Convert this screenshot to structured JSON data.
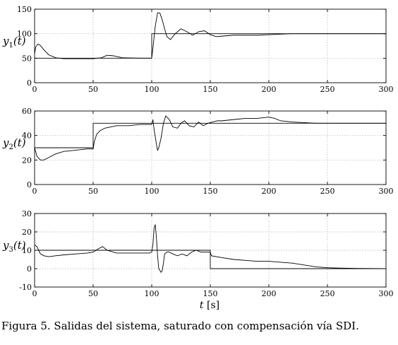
{
  "caption": "Figura 5. Salidas del sistema, saturado con compensación vía SDI.",
  "chart_data": [
    {
      "type": "line",
      "ylabel": "y1(t)",
      "xlim": [
        0,
        300
      ],
      "ylim": [
        0,
        150
      ],
      "xticks": [
        0,
        50,
        100,
        150,
        200,
        250,
        300
      ],
      "yticks": [
        0,
        50,
        100,
        150
      ],
      "grid": true,
      "series": [
        {
          "x": [
            0,
            100,
            100,
            300
          ],
          "y": [
            50,
            50,
            100,
            100
          ]
        },
        {
          "x": [
            0,
            1,
            3,
            5,
            8,
            12,
            18,
            25,
            35,
            50,
            57,
            62,
            67,
            75,
            90,
            100,
            101,
            103,
            105,
            107,
            109,
            111,
            113,
            116,
            120,
            125,
            130,
            135,
            140,
            145,
            150,
            155,
            160,
            170,
            180,
            190,
            200,
            210,
            220,
            230,
            240,
            260,
            280,
            300
          ],
          "y": [
            59,
            73,
            79,
            76,
            67,
            57,
            51,
            49,
            49,
            49,
            51,
            56,
            55,
            51,
            50,
            50,
            70,
            115,
            143,
            142,
            128,
            110,
            94,
            88,
            100,
            110,
            104,
            97,
            104,
            106,
            98,
            94,
            95,
            97,
            97,
            97,
            98,
            99,
            100,
            100,
            100,
            100,
            100,
            100
          ]
        }
      ]
    },
    {
      "type": "line",
      "ylabel": "y2(t)",
      "xlim": [
        0,
        300
      ],
      "ylim": [
        0,
        60
      ],
      "xticks": [
        0,
        50,
        100,
        150,
        200,
        250,
        300
      ],
      "yticks": [
        0,
        20,
        40,
        60
      ],
      "grid": true,
      "series": [
        {
          "x": [
            0,
            50,
            50,
            300
          ],
          "y": [
            30,
            30,
            50,
            50
          ]
        },
        {
          "x": [
            0,
            2,
            5,
            8,
            12,
            18,
            25,
            35,
            45,
            50,
            51,
            53,
            56,
            60,
            65,
            70,
            80,
            90,
            100,
            101,
            102,
            104,
            105,
            106,
            108,
            110,
            112,
            115,
            118,
            122,
            125,
            128,
            132,
            136,
            140,
            144,
            148,
            152,
            156,
            160,
            170,
            180,
            190,
            200,
            205,
            210,
            220,
            240,
            260,
            280,
            300
          ],
          "y": [
            30,
            23,
            20,
            20,
            22,
            25,
            27,
            28,
            29,
            29,
            35,
            41,
            44,
            46,
            47,
            48,
            48,
            49,
            49,
            53,
            45,
            33,
            28,
            30,
            38,
            50,
            56,
            53,
            47,
            46,
            50,
            52,
            48,
            47,
            51,
            48,
            50,
            51,
            52,
            52,
            53,
            54,
            54,
            55,
            54,
            52,
            51,
            50,
            50,
            50,
            50
          ]
        }
      ]
    },
    {
      "type": "line",
      "ylabel": "y3(t)",
      "xlim": [
        0,
        300
      ],
      "ylim": [
        -10,
        30
      ],
      "xticks": [
        0,
        50,
        100,
        150,
        200,
        250,
        300
      ],
      "yticks": [
        -10,
        0,
        10,
        20,
        30
      ],
      "grid": true,
      "series": [
        {
          "x": [
            0,
            150,
            150,
            300
          ],
          "y": [
            10,
            10,
            0,
            0
          ]
        },
        {
          "x": [
            0,
            2,
            5,
            8,
            12,
            18,
            25,
            35,
            45,
            50,
            55,
            58,
            62,
            70,
            80,
            90,
            98,
            100,
            101,
            102,
            103,
            104,
            105,
            106,
            107,
            108,
            109,
            110,
            111,
            113,
            115,
            118,
            122,
            126,
            130,
            134,
            138,
            142,
            146,
            150,
            151,
            160,
            170,
            180,
            190,
            200,
            210,
            220,
            230,
            240,
            250,
            260,
            280,
            300
          ],
          "y": [
            13,
            12,
            8,
            7,
            6.5,
            7,
            7.5,
            8,
            8.5,
            9,
            11,
            12,
            10,
            8.5,
            8.5,
            8.5,
            8.5,
            9,
            13,
            22,
            24,
            17,
            7,
            0,
            -1,
            -2,
            -1,
            3,
            8,
            9,
            9,
            8,
            7,
            8,
            7,
            9,
            10,
            9,
            9,
            9,
            7,
            6,
            5,
            4.5,
            4,
            4,
            3.5,
            3,
            2,
            1,
            0.5,
            0.3,
            0.1,
            0
          ]
        }
      ]
    }
  ]
}
